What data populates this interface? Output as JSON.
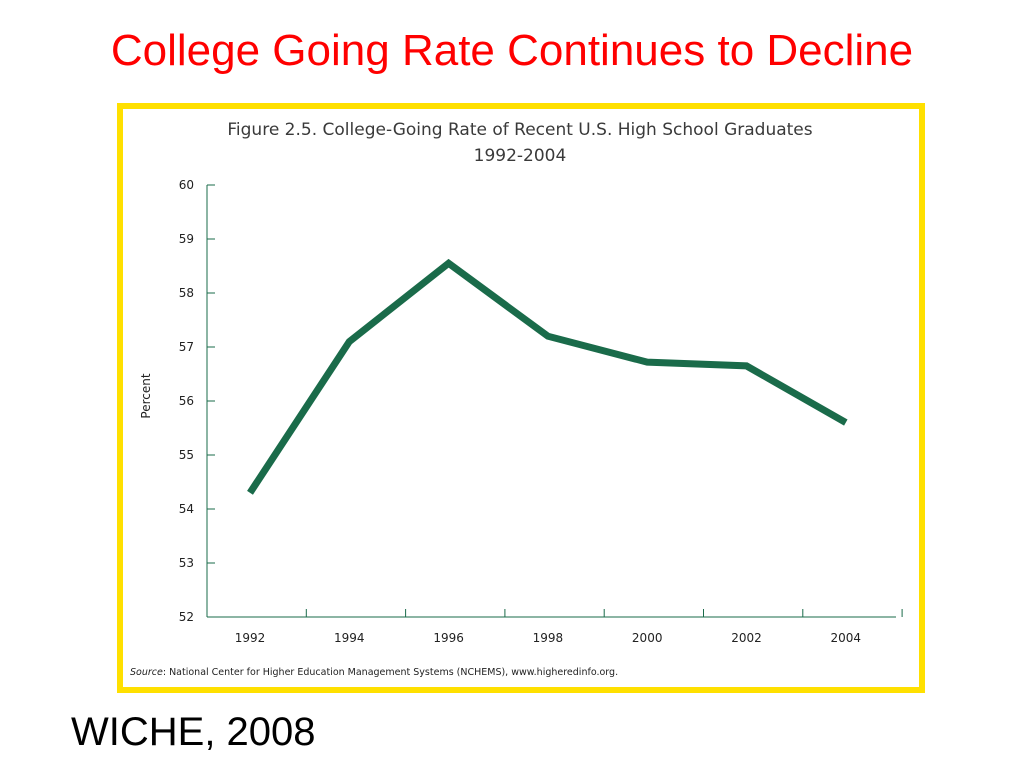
{
  "slide": {
    "title": "College Going Rate Continues to Decline",
    "footer": "WICHE, 2008"
  },
  "colors": {
    "title": "#ff0000",
    "frame": "#ffe000",
    "line": "#1a6b4a"
  },
  "chart_data": {
    "type": "line",
    "title_line1": "Figure 2.5.  College-Going Rate of Recent U.S. High School Graduates",
    "title_line2": "1992-2004",
    "ylabel": "Percent",
    "ylim": [
      52,
      60
    ],
    "yticks": [
      52,
      53,
      54,
      55,
      56,
      57,
      58,
      59,
      60
    ],
    "categories": [
      "1992",
      "1994",
      "1996",
      "1998",
      "2000",
      "2002",
      "2004"
    ],
    "series": [
      {
        "values": [
          54.3,
          57.1,
          58.55,
          57.2,
          56.72,
          56.65,
          55.6
        ]
      }
    ],
    "grid": false,
    "legend": "none",
    "source_label": "Source",
    "source_text": ": National Center for Higher Education Management Systems (NCHEMS), www.higheredinfo.org."
  }
}
